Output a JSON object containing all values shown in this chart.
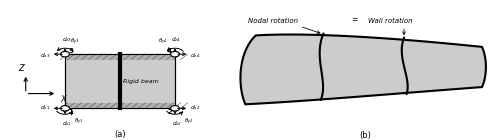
{
  "fig_width": 5.0,
  "fig_height": 1.4,
  "dpi": 100,
  "bg_color": "#ffffff",
  "label_a": "(a)",
  "label_b": "(b)",
  "rigid_beam_label": "Rigid beam",
  "nodal_rotation_label": "Nodal rotation",
  "wall_rotation_label": "Wall rotation",
  "equals_label": "=",
  "gray_fill": "#cccccc",
  "line_color": "#000000"
}
